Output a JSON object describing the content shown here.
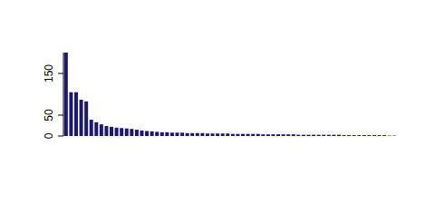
{
  "chart_data": {
    "type": "bar",
    "categories": [
      null,
      null,
      null,
      null,
      null,
      null,
      null,
      null,
      null,
      null,
      null,
      null,
      null,
      null,
      null,
      null,
      null,
      null,
      null,
      null,
      null,
      null,
      null,
      null,
      null,
      null,
      null,
      null,
      null,
      null,
      null,
      null,
      null,
      null,
      null,
      null,
      null,
      null,
      null,
      null,
      null,
      null,
      null,
      null,
      null,
      null,
      null,
      null,
      null,
      null,
      null,
      null,
      null,
      null,
      null,
      null,
      null,
      null,
      null,
      null,
      null,
      null,
      null,
      null,
      null,
      null
    ],
    "values": [
      200,
      105,
      105,
      87,
      83,
      39,
      33,
      28,
      24,
      22,
      20,
      19,
      18,
      17,
      15,
      13,
      12,
      11,
      10,
      9,
      9,
      8,
      8,
      8,
      7,
      7,
      7,
      7,
      6,
      6,
      6,
      6,
      6,
      5,
      5,
      5,
      5,
      5,
      5,
      4,
      4,
      4,
      4,
      4,
      4,
      4,
      3,
      3,
      3,
      3,
      3,
      3,
      3,
      3,
      3,
      2,
      2,
      2,
      2,
      2,
      2,
      2,
      2,
      2,
      1,
      1
    ],
    "color": "#191970",
    "ylim": [
      0,
      200
    ],
    "yticks": [
      0,
      50,
      150
    ],
    "grid": false,
    "tick_labels": "y"
  }
}
